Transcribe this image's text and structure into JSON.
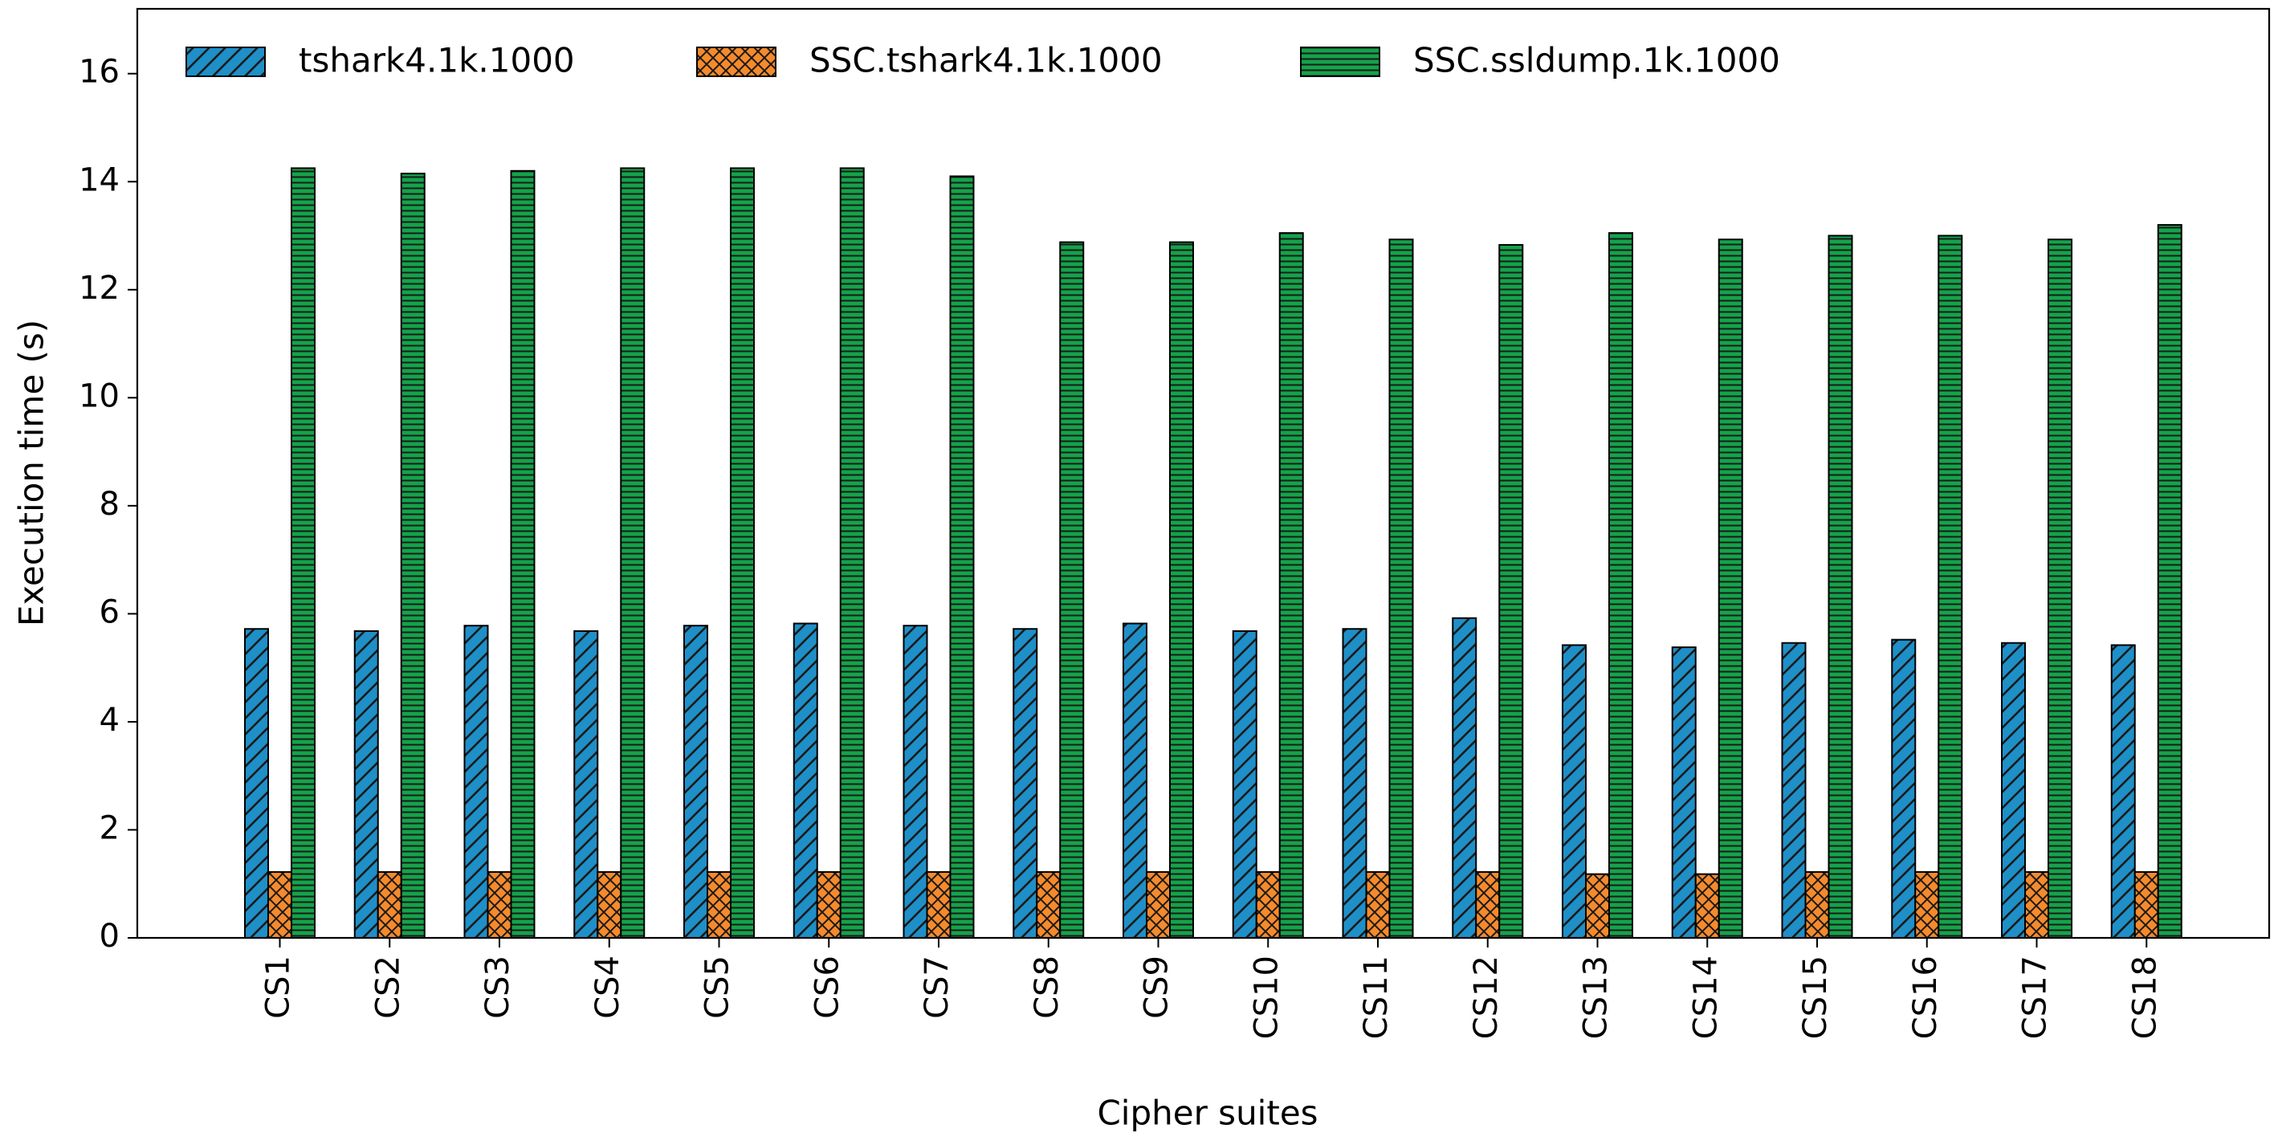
{
  "chart_data": {
    "type": "bar",
    "xlabel": "Cipher suites",
    "ylabel": "Execution time (s)",
    "ylim": [
      0,
      17.2
    ],
    "yticks": [
      0,
      2,
      4,
      6,
      8,
      10,
      12,
      14,
      16
    ],
    "grid": false,
    "legend_position": "top",
    "categories": [
      "CS1",
      "CS2",
      "CS3",
      "CS4",
      "CS5",
      "CS6",
      "CS7",
      "CS8",
      "CS9",
      "CS10",
      "CS11",
      "CS12",
      "CS13",
      "CS14",
      "CS15",
      "CS16",
      "CS17",
      "CS18"
    ],
    "series": [
      {
        "name": "tshark4.1k.1000",
        "color": "#1f8fc8",
        "hatch": "diagonal",
        "values": [
          5.72,
          5.68,
          5.78,
          5.68,
          5.78,
          5.82,
          5.78,
          5.72,
          5.82,
          5.68,
          5.72,
          5.92,
          5.42,
          5.38,
          5.46,
          5.52,
          5.46,
          5.42
        ]
      },
      {
        "name": "SSC.tshark4.1k.1000",
        "color": "#f58a2c",
        "hatch": "crosshatch",
        "values": [
          1.22,
          1.22,
          1.22,
          1.22,
          1.22,
          1.22,
          1.22,
          1.22,
          1.22,
          1.22,
          1.22,
          1.22,
          1.18,
          1.18,
          1.22,
          1.22,
          1.22,
          1.22
        ]
      },
      {
        "name": "SSC.ssldump.1k.1000",
        "color": "#14a34a",
        "hatch": "horizontal",
        "values": [
          14.25,
          14.15,
          14.2,
          14.25,
          14.25,
          14.25,
          14.1,
          12.88,
          12.88,
          13.05,
          12.93,
          12.83,
          13.05,
          12.93,
          13.0,
          13.0,
          12.93,
          13.2
        ]
      }
    ]
  }
}
